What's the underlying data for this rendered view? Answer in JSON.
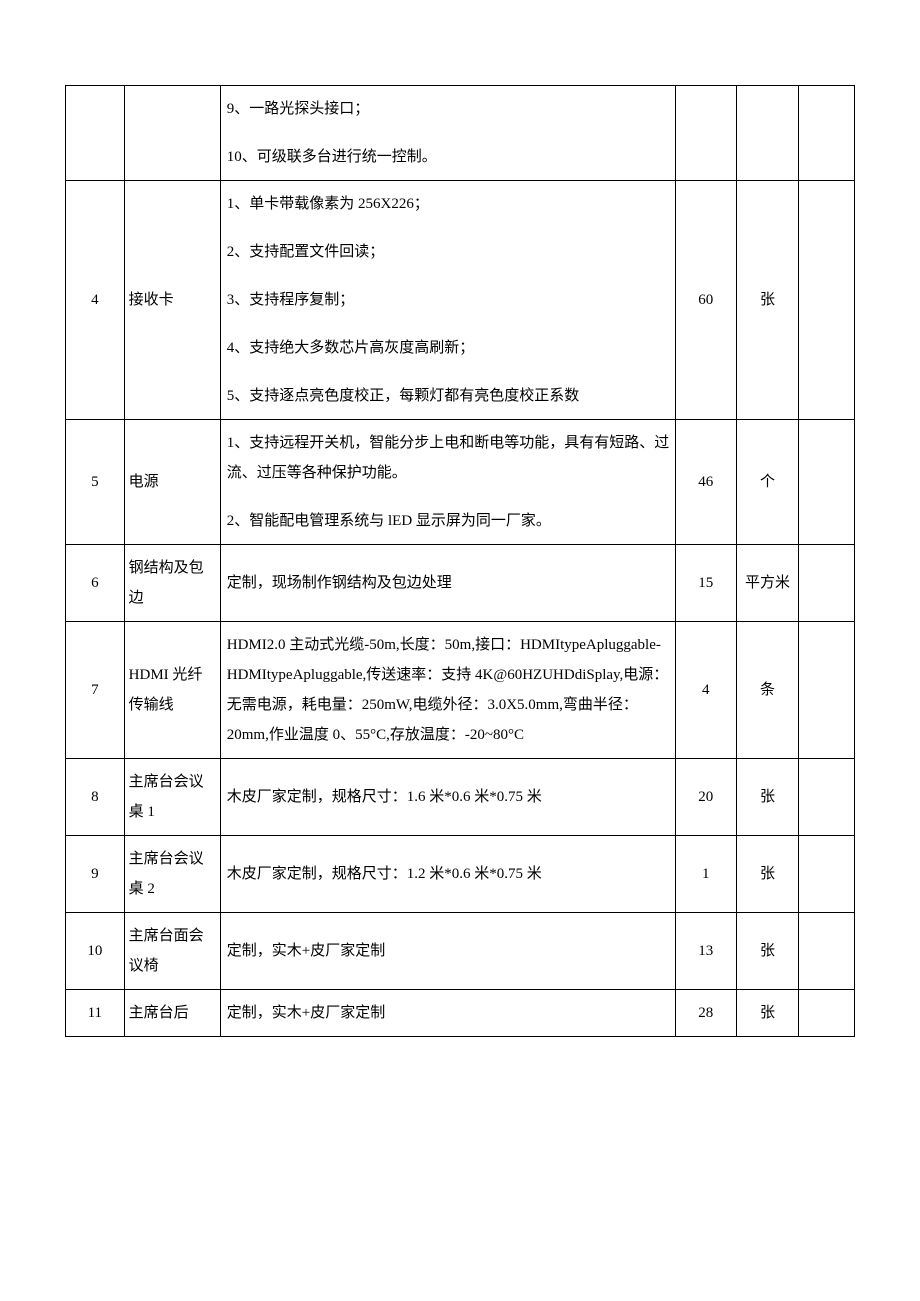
{
  "table": {
    "rows": [
      {
        "num": "",
        "name": "",
        "desc_lines": [
          "9、一路光探头接口；",
          "10、可级联多台进行统一控制。"
        ],
        "qty": "",
        "unit": ""
      },
      {
        "num": "4",
        "name": "接收卡",
        "desc_lines": [
          "1、单卡带载像素为 256X226；",
          "2、支持配置文件回读；",
          "3、支持程序复制；",
          "4、支持绝大多数芯片高灰度高刷新；",
          "5、支持逐点亮色度校正，每颗灯都有亮色度校正系数"
        ],
        "qty": "60",
        "unit": "张"
      },
      {
        "num": "5",
        "name": "电源",
        "desc_lines": [
          "1、支持远程开关机，智能分步上电和断电等功能，具有有短路、过流、过压等各种保护功能。",
          "2、智能配电管理系统与 lED 显示屏为同一厂家。"
        ],
        "qty": "46",
        "unit": "个"
      },
      {
        "num": "6",
        "name": "钢结构及包边",
        "desc_lines": [
          "定制，现场制作钢结构及包边处理"
        ],
        "qty": "15",
        "unit": "平方米"
      },
      {
        "num": "7",
        "name": "HDMI 光纤传输线",
        "desc_lines": [
          "HDMI2.0 主动式光缆-50m,长度：50m,接口：HDMItypeApluggable-HDMItypeApluggable,传送速率：支持 4K@60HZUHDdiSplay,电源：无需电源，耗电量：250mW,电缆外径：3.0X5.0mm,弯曲半径：20mm,作业温度 0、55°C,存放温度：-20~80°C"
        ],
        "qty": "4",
        "unit": "条"
      },
      {
        "num": "8",
        "name": "主席台会议桌 1",
        "desc_lines": [
          "木皮厂家定制，规格尺寸：1.6 米*0.6 米*0.75 米"
        ],
        "qty": "20",
        "unit": "张"
      },
      {
        "num": "9",
        "name": "主席台会议桌 2",
        "desc_lines": [
          "木皮厂家定制，规格尺寸：1.2 米*0.6 米*0.75 米"
        ],
        "qty": "1",
        "unit": "张"
      },
      {
        "num": "10",
        "name": "主席台面会议椅",
        "desc_lines": [
          "定制，实木+皮厂家定制"
        ],
        "qty": "13",
        "unit": "张"
      },
      {
        "num": "11",
        "name": "主席台后",
        "desc_lines": [
          "定制，实木+皮厂家定制"
        ],
        "qty": "28",
        "unit": "张"
      }
    ]
  }
}
